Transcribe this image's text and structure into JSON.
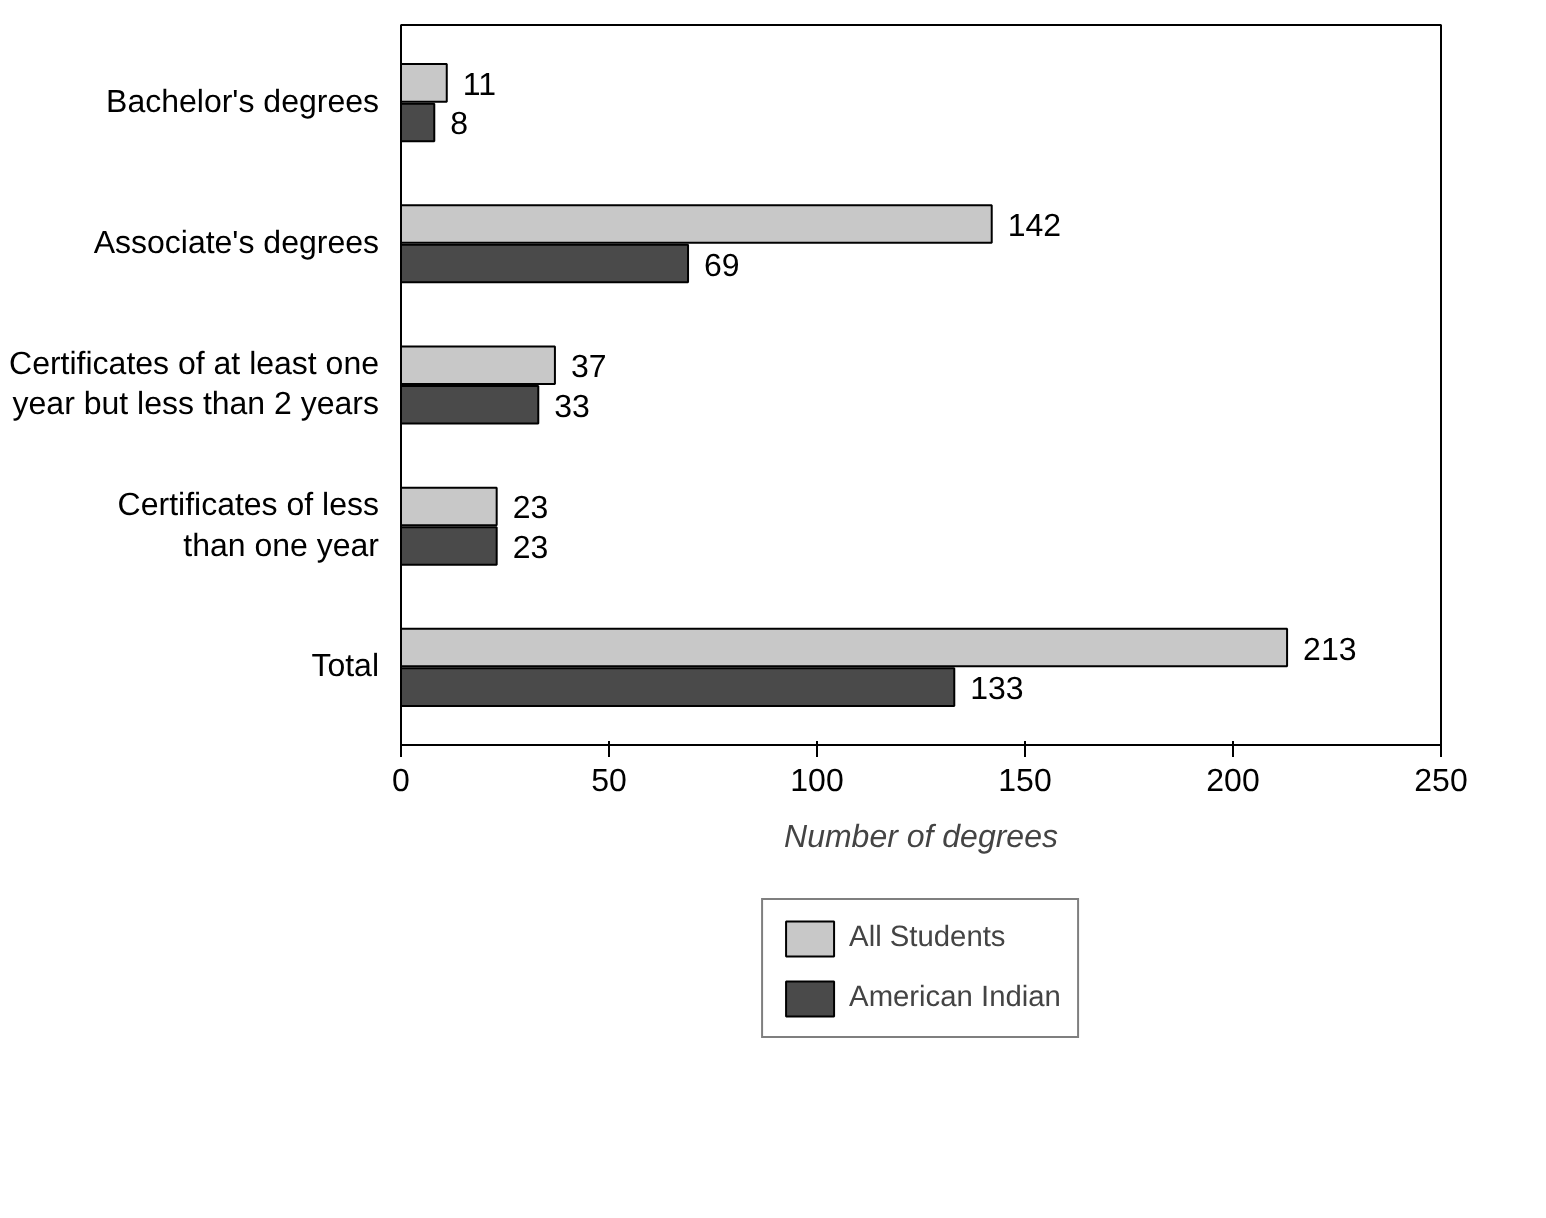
{
  "chart_data": {
    "type": "bar",
    "orientation": "horizontal",
    "categories": [
      "Bachelor's degrees",
      "Associate's degrees",
      "Certificates of at least one\nyear but less than 2 years",
      "Certificates of less\nthan one year",
      "Total"
    ],
    "series": [
      {
        "name": "All Students",
        "color": "#c8c8c8",
        "values": [
          11,
          142,
          37,
          23,
          213
        ]
      },
      {
        "name": "American Indian",
        "color": "#4a4a4a",
        "values": [
          8,
          69,
          33,
          23,
          133
        ]
      }
    ],
    "xlabel": "Number of degrees",
    "xlim": [
      0,
      250
    ],
    "xticks": [
      0,
      50,
      100,
      150,
      200,
      250
    ],
    "grid": false,
    "legend": "bottom",
    "data_labels": true
  }
}
